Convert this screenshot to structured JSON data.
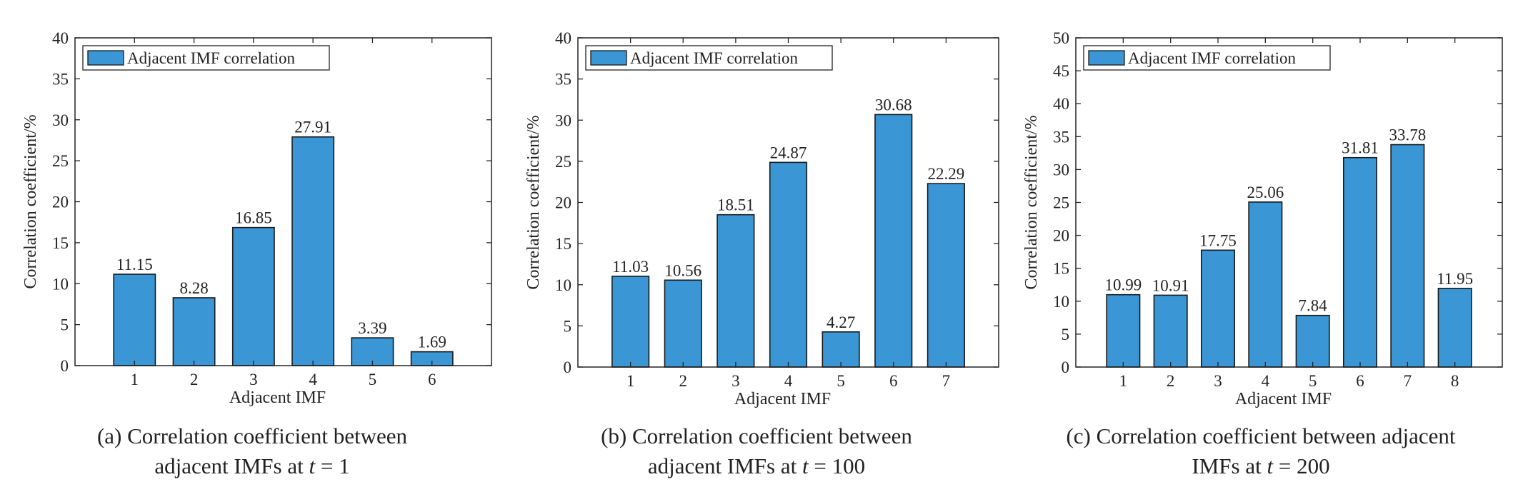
{
  "colors": {
    "bar": "#3a96d4",
    "bar_stroke": "#1a1a1a",
    "axis": "#222222"
  },
  "chart_data": [
    {
      "type": "bar",
      "title": "",
      "xlabel": "Adjacent IMF",
      "ylabel": "Correlation coefficient/%",
      "ylim": [
        0,
        40
      ],
      "yticks": [
        0,
        5,
        10,
        15,
        20,
        25,
        30,
        35,
        40
      ],
      "xlim": [
        0,
        7
      ],
      "categories": [
        "1",
        "2",
        "3",
        "4",
        "5",
        "6"
      ],
      "series": [
        {
          "name": "Adjacent IMF correlation",
          "values": [
            11.15,
            8.28,
            16.85,
            27.91,
            3.39,
            1.69
          ]
        }
      ],
      "value_labels": [
        "11.15",
        "8.28",
        "16.85",
        "27.91",
        "3.39",
        "1.69"
      ],
      "legend": "top-left",
      "grid": false,
      "caption": {
        "line1": "(a) Correlation coefficient between",
        "line2_pre": "adjacent IMFs at ",
        "t": "t",
        "line2_post": " = 1"
      }
    },
    {
      "type": "bar",
      "title": "",
      "xlabel": "Adjacent IMF",
      "ylabel": "Correlation coefficient/%",
      "ylim": [
        0,
        40
      ],
      "yticks": [
        0,
        5,
        10,
        15,
        20,
        25,
        30,
        35,
        40
      ],
      "xlim": [
        0,
        8
      ],
      "categories": [
        "1",
        "2",
        "3",
        "4",
        "5",
        "6",
        "7"
      ],
      "series": [
        {
          "name": "Adjacent IMF correlation",
          "values": [
            11.03,
            10.56,
            18.51,
            24.87,
            4.27,
            30.68,
            22.29
          ]
        }
      ],
      "value_labels": [
        "11.03",
        "10.56",
        "18.51",
        "24.87",
        "4.27",
        "30.68",
        "22.29"
      ],
      "legend": "top-left",
      "grid": false,
      "caption": {
        "line1": "(b) Correlation coefficient between",
        "line2_pre": "adjacent IMFs at ",
        "t": "t",
        "line2_post": " = 100"
      }
    },
    {
      "type": "bar",
      "title": "",
      "xlabel": "Adjacent IMF",
      "ylabel": "Correlation coefficient/%",
      "ylim": [
        0,
        50
      ],
      "yticks": [
        0,
        5,
        10,
        15,
        20,
        25,
        30,
        35,
        40,
        45,
        50
      ],
      "xlim": [
        0,
        9
      ],
      "categories": [
        "1",
        "2",
        "3",
        "4",
        "5",
        "6",
        "7",
        "8"
      ],
      "series": [
        {
          "name": "Adjacent IMF correlation",
          "values": [
            10.99,
            10.91,
            17.75,
            25.06,
            7.84,
            31.81,
            33.78,
            11.95
          ]
        }
      ],
      "value_labels": [
        "10.99",
        "10.91",
        "17.75",
        "25.06",
        "7.84",
        "31.81",
        "33.78",
        "11.95"
      ],
      "legend": "top-left",
      "grid": false,
      "caption": {
        "line1": "(c) Correlation coefficient between adjacent",
        "line2_pre": "IMFs at ",
        "t": "t",
        "line2_post": " = 200"
      }
    }
  ]
}
